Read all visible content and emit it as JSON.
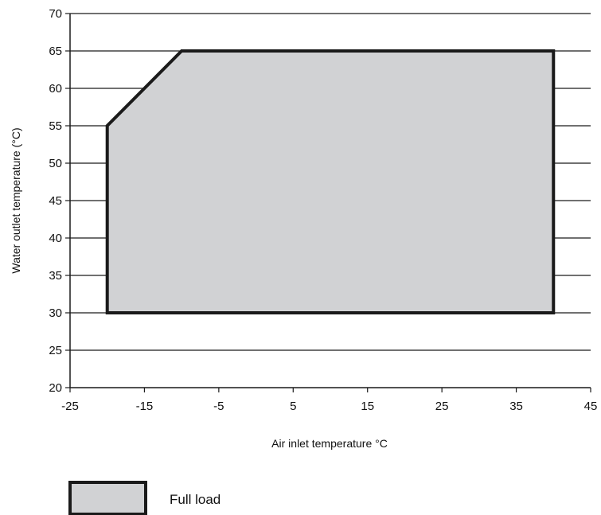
{
  "chart_data": {
    "type": "area",
    "title": "",
    "xlabel": "Air inlet temperature °C",
    "ylabel": "Water outlet temperature (°C)",
    "xlim": [
      -25,
      45
    ],
    "ylim": [
      20,
      70
    ],
    "x_ticks": [
      -25,
      -15,
      -5,
      5,
      15,
      25,
      35,
      45
    ],
    "y_ticks": [
      20,
      25,
      30,
      35,
      40,
      45,
      50,
      55,
      60,
      65,
      70
    ],
    "grid": "horizontal",
    "series": [
      {
        "name": "Full load",
        "x": [
          -20,
          -20,
          -10,
          40,
          40,
          -20
        ],
        "y": [
          30,
          55,
          65,
          65,
          30,
          30
        ]
      }
    ],
    "legend_position": "bottom-left",
    "colors": {
      "fill": "#d1d2d4",
      "stroke": "#1a1a1a",
      "grid": "#1a1a1a"
    }
  }
}
